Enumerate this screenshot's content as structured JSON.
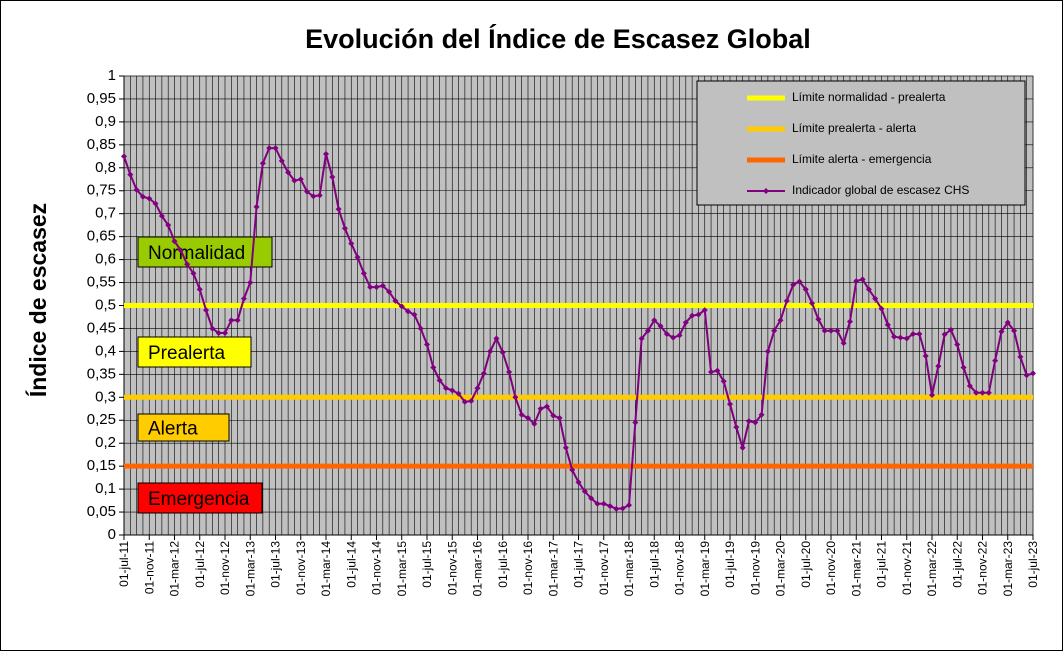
{
  "chart_data": {
    "type": "line",
    "title": "Evolución del Índice de Escasez Global",
    "y_label": "Índice de escasez",
    "categories": [
      "01-jul-11",
      null,
      null,
      null,
      "01-nov-11",
      null,
      null,
      null,
      "01-mar-12",
      null,
      null,
      null,
      "01-jul-12",
      null,
      null,
      null,
      "01-nov-12",
      null,
      null,
      null,
      "01-mar-13",
      null,
      null,
      null,
      "01-jul-13",
      null,
      null,
      null,
      "01-nov-13",
      null,
      null,
      null,
      "01-mar-14",
      null,
      null,
      null,
      "01-jul-14",
      null,
      null,
      null,
      "01-nov-14",
      null,
      null,
      null,
      "01-mar-15",
      null,
      null,
      null,
      "01-jul-15",
      null,
      null,
      null,
      "01-nov-15",
      null,
      null,
      null,
      "01-mar-16",
      null,
      null,
      null,
      "01-jul-16",
      null,
      null,
      null,
      "01-nov-16",
      null,
      null,
      null,
      "01-mar-17",
      null,
      null,
      null,
      "01-jul-17",
      null,
      null,
      null,
      "01-nov-17",
      null,
      null,
      null,
      "01-mar-18",
      null,
      null,
      null,
      "01-jul-18",
      null,
      null,
      null,
      "01-nov-18",
      null,
      null,
      null,
      "01-mar-19",
      null,
      null,
      null,
      "01-jul-19",
      null,
      null,
      null,
      "01-nov-19",
      null,
      null,
      null,
      "01-mar-20",
      null,
      null,
      null,
      "01-jul-20",
      null,
      null,
      null,
      "01-nov-20",
      null,
      null,
      null,
      "01-mar-21",
      null,
      null,
      null,
      "01-jul-21",
      null,
      null,
      null,
      "01-nov-21",
      null,
      null,
      null,
      "01-mar-22",
      null,
      null,
      null,
      "01-jul-22",
      null,
      null,
      null,
      "01-nov-22",
      null,
      null,
      null,
      "01-mar-23",
      null,
      null,
      null,
      "01-jul-23"
    ],
    "thresholds": [
      {
        "name": "Límite normalidad - prealerta",
        "color": "#ffff00",
        "value": 0.5
      },
      {
        "name": "Límite prealerta - alerta",
        "color": "#ffcc00",
        "value": 0.3
      },
      {
        "name": "Límite alerta - emergencia",
        "color": "#ff6600",
        "value": 0.15
      }
    ],
    "series": [
      {
        "name": "Indicador global de escasez CHS",
        "color": "#800080",
        "values": [
          0.825,
          0.785,
          0.752,
          0.737,
          0.733,
          0.722,
          0.695,
          0.675,
          0.64,
          0.62,
          0.59,
          0.57,
          0.535,
          0.49,
          0.45,
          0.44,
          0.44,
          0.468,
          0.468,
          0.515,
          0.55,
          0.715,
          0.81,
          0.843,
          0.843,
          0.815,
          0.79,
          0.772,
          0.775,
          0.748,
          0.738,
          0.74,
          0.83,
          0.78,
          0.71,
          0.668,
          0.635,
          0.605,
          0.57,
          0.54,
          0.54,
          0.543,
          0.53,
          0.51,
          0.498,
          0.487,
          0.48,
          0.45,
          0.415,
          0.365,
          0.337,
          0.32,
          0.315,
          0.308,
          0.29,
          0.292,
          0.32,
          0.352,
          0.4,
          0.428,
          0.398,
          0.355,
          0.3,
          0.262,
          0.255,
          0.242,
          0.275,
          0.28,
          0.26,
          0.255,
          0.19,
          0.142,
          0.115,
          0.095,
          0.08,
          0.068,
          0.068,
          0.063,
          0.057,
          0.058,
          0.065,
          0.245,
          0.428,
          0.445,
          0.468,
          0.455,
          0.438,
          0.43,
          0.435,
          0.463,
          0.478,
          0.48,
          0.49,
          0.355,
          0.358,
          0.335,
          0.285,
          0.235,
          0.19,
          0.248,
          0.245,
          0.262,
          0.4,
          0.445,
          0.468,
          0.51,
          0.545,
          0.552,
          0.535,
          0.505,
          0.47,
          0.445,
          0.445,
          0.445,
          0.418,
          0.465,
          0.553,
          0.557,
          0.535,
          0.515,
          0.493,
          0.458,
          0.432,
          0.43,
          0.428,
          0.438,
          0.438,
          0.39,
          0.305,
          0.368,
          0.437,
          0.447,
          0.415,
          0.365,
          0.325,
          0.31,
          0.31,
          0.31,
          0.38,
          0.443,
          0.463,
          0.445,
          0.388,
          0.348,
          0.352
        ]
      }
    ],
    "zones": [
      {
        "label": "Normalidad",
        "color": "#99cc00"
      },
      {
        "label": "Prealerta",
        "color": "#ffff00"
      },
      {
        "label": "Alerta",
        "color": "#ffcc00"
      },
      {
        "label": "Emergencia",
        "color": "#ff0000"
      }
    ],
    "ylim": [
      0,
      1
    ],
    "yticks": [
      0,
      {
        "value": 0.05,
        "label": "0,05"
      },
      {
        "value": 0.1,
        "label": "0,1"
      },
      {
        "value": 0.15,
        "label": "0,15"
      },
      {
        "value": 0.2,
        "label": "0,2"
      },
      {
        "value": 0.25,
        "label": "0,25"
      },
      {
        "value": 0.3,
        "label": "0,3"
      },
      {
        "value": 0.35,
        "label": "0,35"
      },
      {
        "value": 0.4,
        "label": "0,4"
      },
      {
        "value": 0.45,
        "label": "0,45"
      },
      {
        "value": 0.5,
        "label": "0,5"
      },
      {
        "value": 0.55,
        "label": "0,55"
      },
      {
        "value": 0.6,
        "label": "0,6"
      },
      {
        "value": 0.65,
        "label": "0,65"
      },
      {
        "value": 0.7,
        "label": "0,7"
      },
      {
        "value": 0.75,
        "label": "0,75"
      },
      {
        "value": 0.8,
        "label": "0,8"
      },
      {
        "value": 0.85,
        "label": "0,85"
      },
      {
        "value": 0.9,
        "label": "0,9"
      },
      {
        "value": 0.95,
        "label": "0,95"
      },
      1
    ],
    "grid": true,
    "legend": "top-right"
  }
}
